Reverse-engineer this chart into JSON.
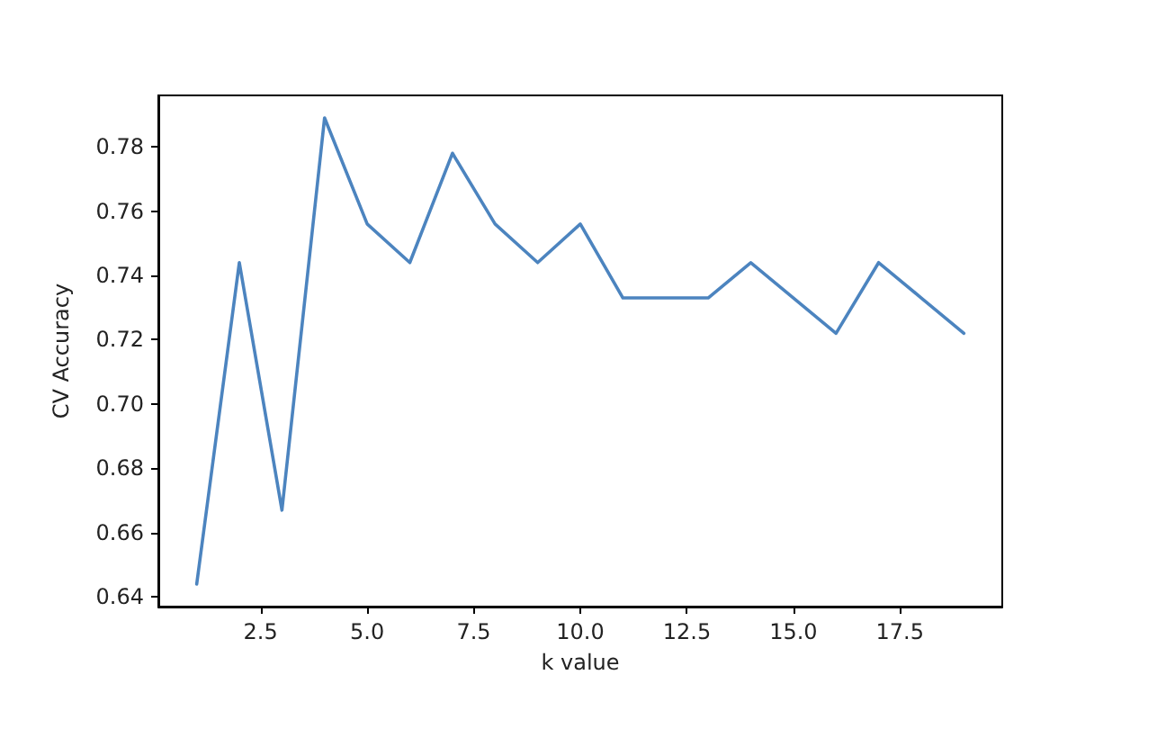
{
  "chart_data": {
    "type": "line",
    "xlabel": "k value",
    "ylabel": "CV Accuracy",
    "x": [
      1,
      2,
      3,
      4,
      5,
      6,
      7,
      8,
      9,
      10,
      11,
      12,
      13,
      14,
      15,
      16,
      17,
      18,
      19
    ],
    "series": [
      {
        "color": "#4c84bf",
        "values": [
          0.644,
          0.744,
          0.667,
          0.789,
          0.756,
          0.744,
          0.778,
          0.756,
          0.744,
          0.756,
          0.733,
          0.733,
          0.733,
          0.744,
          0.733,
          0.722,
          0.744,
          0.733,
          0.722
        ]
      }
    ],
    "xlim": [
      0.1,
      19.9
    ],
    "xticks": [
      {
        "value": 2.5,
        "label": "2.5"
      },
      {
        "value": 5,
        "label": "5.0"
      },
      {
        "value": 7.5,
        "label": "7.5"
      },
      {
        "value": 10,
        "label": "10.0"
      },
      {
        "value": 12.5,
        "label": "12.5"
      },
      {
        "value": 15,
        "label": "15.0"
      },
      {
        "value": 17.5,
        "label": "17.5"
      }
    ],
    "ylim": [
      0.637,
      0.796
    ],
    "yticks": [
      {
        "value": 0.64,
        "label": "0.64"
      },
      {
        "value": 0.66,
        "label": "0.66"
      },
      {
        "value": 0.68,
        "label": "0.68"
      },
      {
        "value": 0.7,
        "label": "0.70"
      },
      {
        "value": 0.72,
        "label": "0.72"
      },
      {
        "value": 0.74,
        "label": "0.74"
      },
      {
        "value": 0.76,
        "label": "0.76"
      },
      {
        "value": 0.78,
        "label": "0.78"
      }
    ],
    "marker": "none",
    "line_style": "solid"
  }
}
